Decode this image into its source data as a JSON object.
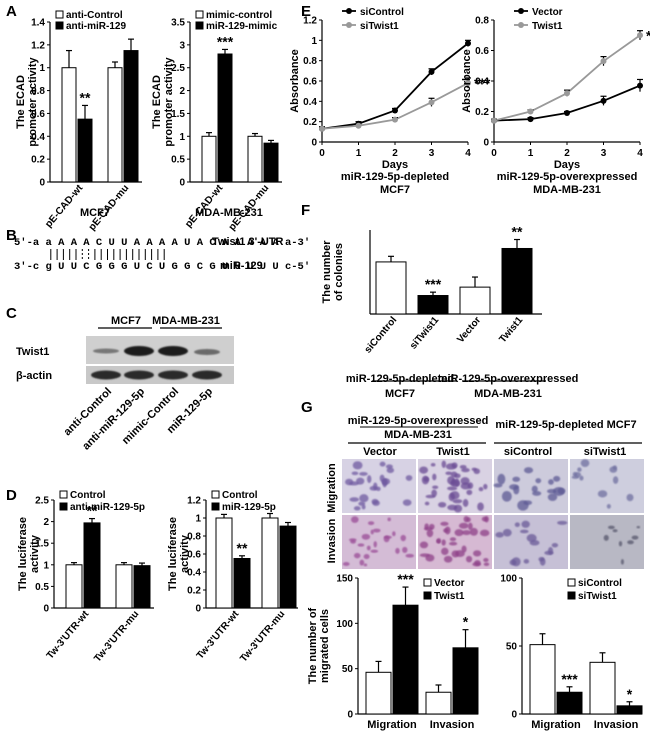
{
  "panels": {
    "A": "A",
    "B": "B",
    "C": "C",
    "D": "D",
    "E": "E",
    "F": "F",
    "G": "G"
  },
  "panel_A": {
    "cell_lines": [
      "MCF7",
      "MDA-MB-231"
    ]
  },
  "panel_B": {
    "top_seq": "5'-a a A A A C U U A A A A U A C A A A A A a-3'",
    "top_label": "Twist1 3'-UTR",
    "bottom_seq": "3'-c g U U C G G G U C U G G C G U U U U U c-5'",
    "bottom_label": "miR-129"
  },
  "panel_C": {
    "group_labels": [
      "MCF7",
      "MDA-MB-231"
    ],
    "row_labels": [
      "Twist1",
      "β-actin"
    ],
    "lanes": [
      "anti-Control",
      "anti-miR-129-5p",
      "mimic-Control",
      "miR-129-5p"
    ]
  },
  "panel_G": {
    "group_left_line1": "miR-129-5p-overexpressed",
    "group_left_line2": "MDA-MB-231",
    "group_right": "miR-129-5p-depleted MCF7",
    "col_labels": [
      "Vector",
      "Twist1",
      "siControl",
      "siTwist1"
    ],
    "row_labels": [
      "Migration",
      "Invasion"
    ]
  },
  "chart_data": [
    {
      "id": "A1",
      "type": "bar",
      "categories": [
        "pE-CAD-wt",
        "pE-CAD-mu"
      ],
      "series": [
        {
          "name": "anti-Control",
          "values": [
            1.0,
            1.0
          ],
          "errors": [
            0.15,
            0.05
          ],
          "color": "#ffffff"
        },
        {
          "name": "anti-miR-129",
          "values": [
            0.55,
            1.15
          ],
          "errors": [
            0.12,
            0.1
          ],
          "color": "#000000"
        }
      ],
      "ylabel": "The ECAD promoter activity",
      "ylim": [
        0,
        1.4
      ],
      "yticks": [
        0,
        0.2,
        0.4,
        0.6,
        0.8,
        1,
        1.2,
        1.4
      ],
      "xlabel": "MCF7",
      "annotations": [
        {
          "text": "**",
          "category": 0
        }
      ]
    },
    {
      "id": "A2",
      "type": "bar",
      "categories": [
        "pE-CAD-wt",
        "pE-CAD-mu"
      ],
      "series": [
        {
          "name": "mimic-control",
          "values": [
            1.0,
            1.0
          ],
          "errors": [
            0.08,
            0.06
          ],
          "color": "#ffffff"
        },
        {
          "name": "miR-129-mimic",
          "values": [
            2.8,
            0.85
          ],
          "errors": [
            0.1,
            0.06
          ],
          "color": "#000000"
        }
      ],
      "ylabel": "The ECAD promoter activity",
      "ylim": [
        0,
        3.5
      ],
      "yticks": [
        0,
        0.5,
        1,
        1.5,
        2,
        2.5,
        3,
        3.5
      ],
      "xlabel": "MDA-MB-231",
      "annotations": [
        {
          "text": "***",
          "category": 0
        }
      ]
    },
    {
      "id": "E1",
      "type": "line",
      "x": [
        0,
        1,
        2,
        3,
        4
      ],
      "series": [
        {
          "name": "siControl",
          "values": [
            0.13,
            0.18,
            0.31,
            0.69,
            0.97
          ],
          "errors": [
            0.02,
            0.02,
            0.02,
            0.03,
            0.03
          ],
          "color": "#000000"
        },
        {
          "name": "siTwist1",
          "values": [
            0.13,
            0.16,
            0.22,
            0.39,
            0.58
          ],
          "errors": [
            0.02,
            0.02,
            0.02,
            0.04,
            0.05
          ],
          "color": "#999999"
        }
      ],
      "xlabel": "Days",
      "ylabel": "Absorbance",
      "ylim": [
        0,
        1.2
      ],
      "yticks": [
        0,
        0.2,
        0.4,
        0.6,
        0.8,
        1,
        1.2
      ],
      "subtitle": [
        "miR-129-5p-depleted",
        "MCF7"
      ],
      "annotation": "***"
    },
    {
      "id": "E2",
      "type": "line",
      "x": [
        0,
        1,
        2,
        3,
        4
      ],
      "series": [
        {
          "name": "Vector",
          "values": [
            0.14,
            0.15,
            0.19,
            0.27,
            0.37
          ],
          "errors": [
            0.01,
            0.01,
            0.01,
            0.03,
            0.04
          ],
          "color": "#000000"
        },
        {
          "name": "Twist1",
          "values": [
            0.14,
            0.2,
            0.32,
            0.53,
            0.7
          ],
          "errors": [
            0.01,
            0.01,
            0.02,
            0.03,
            0.03
          ],
          "color": "#999999"
        }
      ],
      "xlabel": "Days",
      "ylabel": "Absorbance",
      "ylim": [
        0,
        0.8
      ],
      "yticks": [
        0,
        0.2,
        0.4,
        0.6,
        0.8
      ],
      "subtitle": [
        "miR-129-5p-overexpressed",
        "MDA-MB-231"
      ],
      "annotation": "***"
    },
    {
      "id": "F",
      "type": "bar",
      "categories": [
        "siControl",
        "siTwist1",
        "Vector",
        "Twist1"
      ],
      "values": [
        93,
        33,
        48,
        117
      ],
      "errors": [
        10,
        6,
        18,
        16
      ],
      "colors": [
        "#ffffff",
        "#000000",
        "#ffffff",
        "#000000"
      ],
      "ylabel": "The number of colonies",
      "ylim": [
        0,
        150
      ],
      "annotations": [
        {
          "text": "***",
          "category": 1
        },
        {
          "text": "**",
          "category": 3
        }
      ],
      "group_labels": [
        [
          "miR-129-5p-depleted",
          "MCF7"
        ],
        [
          "miR-129-5p-overexpressed",
          "MDA-MB-231"
        ]
      ]
    },
    {
      "id": "D1",
      "type": "bar",
      "categories": [
        "Tw-3'UTR-wt",
        "Tw-3'UTR-mu"
      ],
      "series": [
        {
          "name": "Control",
          "values": [
            1.0,
            1.0
          ],
          "errors": [
            0.05,
            0.05
          ],
          "color": "#ffffff"
        },
        {
          "name": "anti-miR-129-5p",
          "values": [
            1.97,
            0.98
          ],
          "errors": [
            0.1,
            0.06
          ],
          "color": "#000000"
        }
      ],
      "ylabel": "The luciferase activity",
      "ylim": [
        0,
        2.5
      ],
      "yticks": [
        0,
        0.5,
        1,
        1.5,
        2,
        2.5
      ],
      "annotations": [
        {
          "text": "**",
          "category": 0
        }
      ]
    },
    {
      "id": "D2",
      "type": "bar",
      "categories": [
        "Tw-3'UTR-wt",
        "Tw-3'UTR-mu"
      ],
      "series": [
        {
          "name": "Control",
          "values": [
            1.0,
            1.0
          ],
          "errors": [
            0.04,
            0.05
          ],
          "color": "#ffffff"
        },
        {
          "name": "miR-129-5p",
          "values": [
            0.55,
            0.91
          ],
          "errors": [
            0.03,
            0.04
          ],
          "color": "#000000"
        }
      ],
      "ylabel": "The luciferase activity",
      "ylim": [
        0,
        1.2
      ],
      "yticks": [
        0,
        0.2,
        0.4,
        0.6,
        0.8,
        1,
        1.2
      ],
      "annotations": [
        {
          "text": "**",
          "category": 0
        }
      ]
    },
    {
      "id": "G1",
      "type": "bar",
      "categories": [
        "Migration",
        "Invasion"
      ],
      "series": [
        {
          "name": "Vector",
          "values": [
            46,
            24
          ],
          "errors": [
            12,
            8
          ],
          "color": "#ffffff"
        },
        {
          "name": "Twist1",
          "values": [
            120,
            73
          ],
          "errors": [
            20,
            20
          ],
          "color": "#000000"
        }
      ],
      "ylabel": "The number of migrated cells",
      "ylim": [
        0,
        150
      ],
      "yticks": [
        0,
        50,
        100,
        150
      ],
      "annotations": [
        {
          "text": "***",
          "category": 0
        },
        {
          "text": "*",
          "category": 1
        }
      ]
    },
    {
      "id": "G2",
      "type": "bar",
      "categories": [
        "Migration",
        "Invasion"
      ],
      "series": [
        {
          "name": "siControl",
          "values": [
            51,
            38
          ],
          "errors": [
            8,
            7
          ],
          "color": "#ffffff"
        },
        {
          "name": "siTwist1",
          "values": [
            16,
            6
          ],
          "errors": [
            4,
            3
          ],
          "color": "#000000"
        }
      ],
      "ylabel": "",
      "ylim": [
        0,
        100
      ],
      "yticks": [
        0,
        50,
        100
      ],
      "annotations": [
        {
          "text": "***",
          "category": 0
        },
        {
          "text": "*",
          "category": 1
        }
      ]
    }
  ]
}
